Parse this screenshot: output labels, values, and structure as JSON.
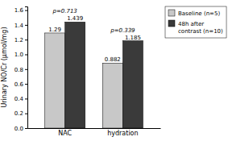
{
  "chart_data": {
    "type": "bar",
    "categories": [
      "NAC",
      "hydration"
    ],
    "series": [
      {
        "name": "Baseline (n=5)",
        "color": "#c8c8c8",
        "values": [
          1.29,
          0.882
        ]
      },
      {
        "name": "48h after\ncontrast (n=10)",
        "color": "#3a3a3a",
        "values": [
          1.439,
          1.185
        ]
      }
    ],
    "ylabel": "Urinary NO/Cr (μmol/mg)",
    "ylim": [
      0,
      1.65
    ],
    "yticks": [
      {
        "value": 0.0,
        "label": "0.0"
      },
      0.2,
      0.4,
      0.6,
      0.8,
      {
        "value": 1.0,
        "label": "1.0"
      },
      1.2,
      1.4,
      1.6
    ],
    "annotations": [
      "p=0.713",
      "p=0.339"
    ],
    "data_labels": true,
    "legend": "right",
    "grid": false
  }
}
